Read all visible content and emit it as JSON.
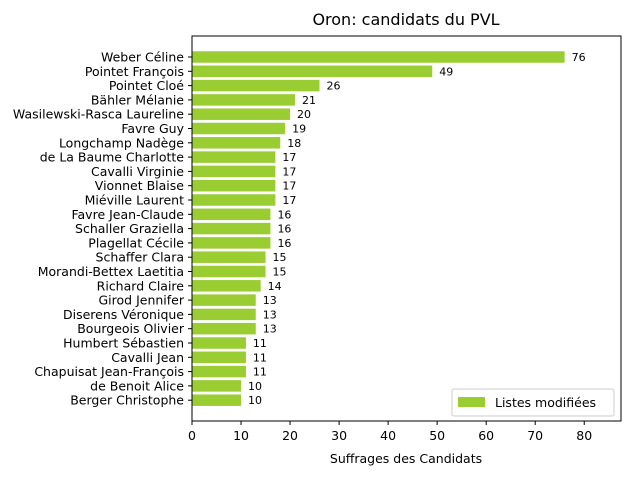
{
  "chart_data": {
    "type": "bar",
    "orientation": "horizontal",
    "title": "Oron: candidats du PVL",
    "xlabel": "Suffrages des Candidats",
    "ylabel": "",
    "xlim": [
      0,
      87.5
    ],
    "xticks": [
      0,
      10,
      20,
      30,
      40,
      50,
      60,
      70,
      80
    ],
    "grid": false,
    "legend": {
      "placement": "lower-right",
      "entries": [
        "Listes modifiées"
      ]
    },
    "series": [
      {
        "name": "Listes modifiées",
        "color": "#9acd32",
        "values": [
          76,
          49,
          26,
          21,
          20,
          19,
          18,
          17,
          17,
          17,
          17,
          16,
          16,
          16,
          15,
          15,
          14,
          13,
          13,
          13,
          11,
          11,
          11,
          10,
          10
        ]
      }
    ],
    "categories": [
      "Weber Céline",
      "Pointet François",
      "Pointet Cloé",
      "Bähler Mélanie",
      "Wasilewski-Rasca Laureline",
      "Favre Guy",
      "Longchamp Nadège",
      "de La Baume Charlotte",
      "Cavalli Virginie",
      "Vionnet Blaise",
      "Miéville Laurent",
      "Favre Jean-Claude",
      "Schaller Graziella",
      "Plagellat Cécile",
      "Schaffer Clara",
      "Morandi-Bettex Laetitia",
      "Richard Claire",
      "Girod Jennifer",
      "Diserens Véronique",
      "Bourgeois Olivier",
      "Humbert Sébastien",
      "Cavalli Jean",
      "Chapuisat Jean-François",
      "de Benoit Alice",
      "Berger Christophe"
    ]
  }
}
